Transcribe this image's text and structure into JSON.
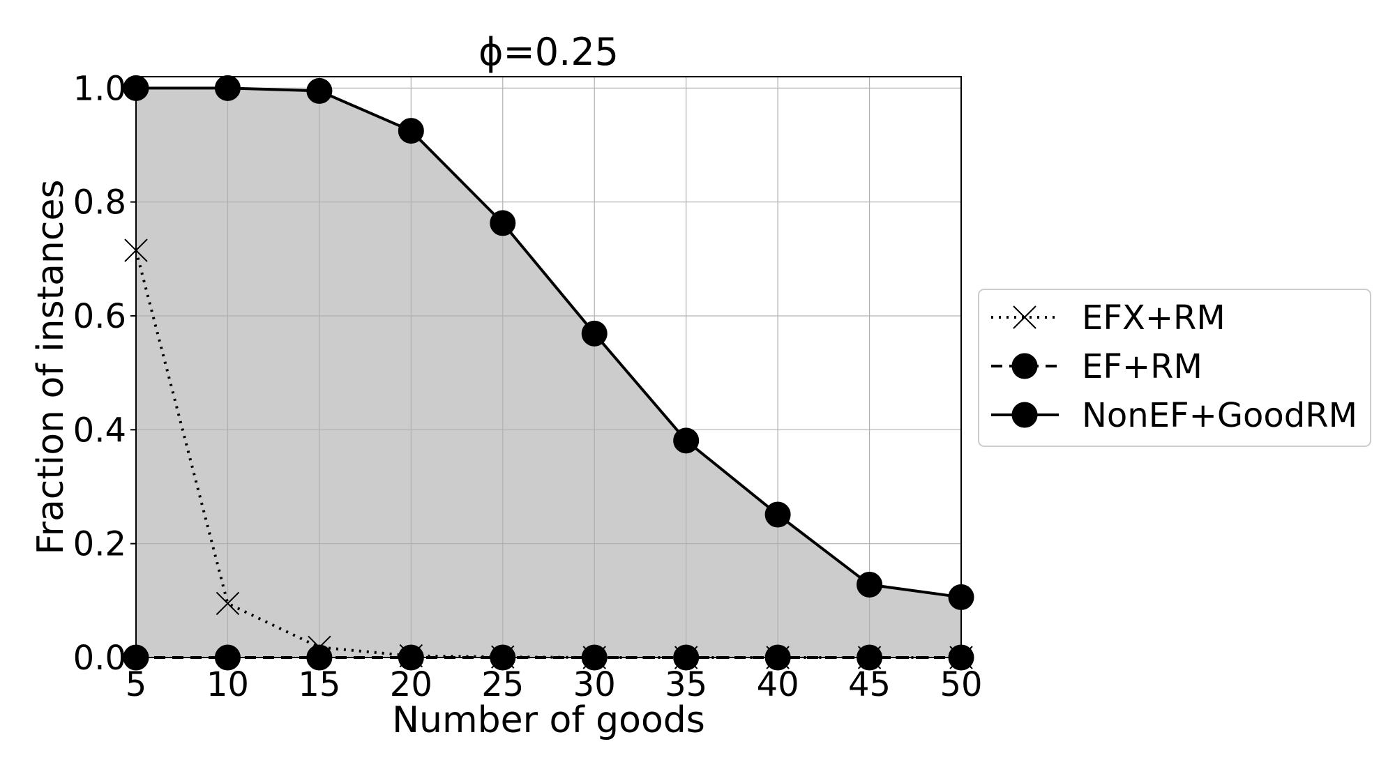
{
  "chart_data": {
    "type": "line",
    "title": "ϕ=0.25",
    "xlabel": "Number of goods",
    "ylabel": "Fraction of instances",
    "x": [
      5,
      10,
      15,
      20,
      25,
      30,
      35,
      40,
      45,
      50
    ],
    "xlim": [
      5,
      50
    ],
    "ylim": [
      0,
      1.02
    ],
    "xticks": [
      "5",
      "10",
      "15",
      "20",
      "25",
      "30",
      "35",
      "40",
      "45",
      "50"
    ],
    "yticks": [
      "0.0",
      "0.2",
      "0.4",
      "0.6",
      "0.8",
      "1.0"
    ],
    "grid": true,
    "legend_position": "outside-right",
    "shaded_area_series": "NonEF+GoodRM",
    "shade_color": "#cccccc",
    "series": [
      {
        "name": "EFX+RM",
        "linestyle": "dotted",
        "marker": "x",
        "color": "#000000",
        "values": [
          0.715,
          0.095,
          0.018,
          0.003,
          0.001,
          0.0,
          0.0,
          0.0,
          0.0,
          0.0
        ]
      },
      {
        "name": "EF+RM",
        "linestyle": "dashed",
        "marker": "circle",
        "color": "#000000",
        "values": [
          0.0,
          0.0,
          0.0,
          0.0,
          0.0,
          0.0,
          0.0,
          0.0,
          0.0,
          0.0
        ]
      },
      {
        "name": "NonEF+GoodRM",
        "linestyle": "solid",
        "marker": "circle",
        "color": "#000000",
        "values": [
          1.0,
          1.0,
          0.995,
          0.925,
          0.763,
          0.569,
          0.381,
          0.251,
          0.128,
          0.106
        ]
      }
    ]
  }
}
